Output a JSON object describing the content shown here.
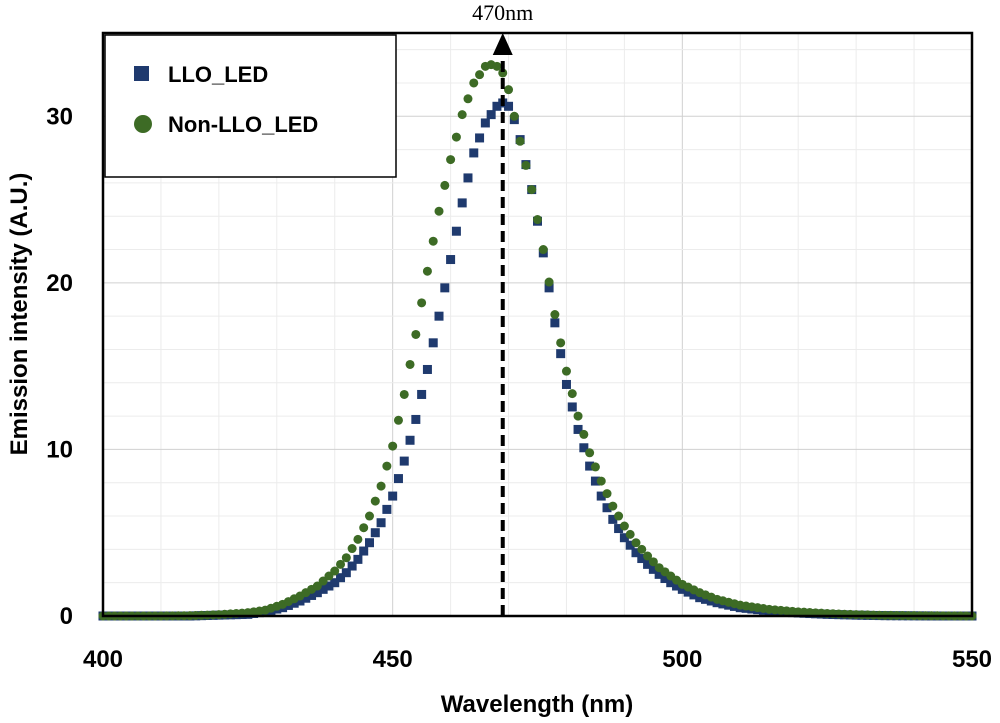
{
  "chart_data": {
    "type": "scatter",
    "title": "",
    "xlabel": "Wavelength (nm)",
    "ylabel": "Emission intensity (A.U.)",
    "xlim": [
      400,
      550
    ],
    "ylim": [
      0,
      35
    ],
    "xticks": [
      "400",
      "450",
      "500",
      "550"
    ],
    "yticks": [
      "0",
      "10",
      "20",
      "30"
    ],
    "grid": true,
    "legend_position": "top-left",
    "annotation": {
      "text": "470nm",
      "x": 469
    },
    "series": [
      {
        "name": "LLO_LED",
        "marker": "square",
        "color": "#1f3a6e",
        "x": [
          400,
          405,
          410,
          415,
          420,
          425,
          428,
          431,
          434,
          437,
          440,
          442,
          444,
          446,
          448,
          450,
          452,
          454,
          456,
          458,
          460,
          462,
          464,
          466,
          467,
          468,
          469,
          470,
          471,
          472,
          474,
          476,
          478,
          480,
          482,
          484,
          486,
          488,
          490,
          492,
          494,
          496,
          498,
          500,
          503,
          506,
          510,
          515,
          520,
          525,
          530,
          535,
          540,
          545,
          550
        ],
        "y": [
          0,
          0,
          0,
          0,
          0.05,
          0.1,
          0.25,
          0.5,
          0.9,
          1.4,
          2.0,
          2.6,
          3.4,
          4.4,
          5.6,
          7.2,
          9.3,
          11.8,
          14.8,
          18.0,
          21.4,
          24.8,
          27.8,
          29.6,
          30.1,
          30.6,
          30.8,
          30.6,
          29.8,
          28.6,
          25.6,
          21.8,
          17.6,
          13.9,
          11.2,
          9.0,
          7.2,
          5.8,
          4.7,
          3.8,
          3.1,
          2.5,
          2.0,
          1.6,
          1.1,
          0.8,
          0.5,
          0.3,
          0.18,
          0.1,
          0.05,
          0.02,
          0.01,
          0,
          0
        ]
      },
      {
        "name": "Non-LLO_LED",
        "marker": "circle",
        "color": "#3d6b25",
        "x": [
          400,
          405,
          410,
          415,
          420,
          425,
          428,
          431,
          434,
          437,
          440,
          442,
          444,
          446,
          448,
          450,
          452,
          454,
          456,
          458,
          460,
          462,
          464,
          466,
          467,
          468,
          469,
          470,
          471,
          472,
          474,
          476,
          478,
          480,
          482,
          484,
          486,
          488,
          490,
          492,
          494,
          496,
          498,
          500,
          503,
          506,
          510,
          515,
          520,
          525,
          530,
          535,
          540,
          545,
          550
        ],
        "y": [
          0,
          0,
          0,
          0.02,
          0.08,
          0.2,
          0.35,
          0.7,
          1.2,
          1.8,
          2.7,
          3.5,
          4.6,
          6.0,
          7.8,
          10.2,
          13.3,
          16.9,
          20.7,
          24.3,
          27.4,
          30.1,
          32.0,
          33.0,
          33.1,
          33.0,
          32.6,
          31.6,
          30.0,
          28.5,
          25.6,
          22.0,
          18.1,
          14.7,
          12.0,
          9.8,
          8.1,
          6.6,
          5.4,
          4.4,
          3.6,
          2.9,
          2.4,
          1.9,
          1.4,
          1.0,
          0.65,
          0.4,
          0.25,
          0.15,
          0.08,
          0.04,
          0.02,
          0.01,
          0
        ]
      }
    ]
  }
}
